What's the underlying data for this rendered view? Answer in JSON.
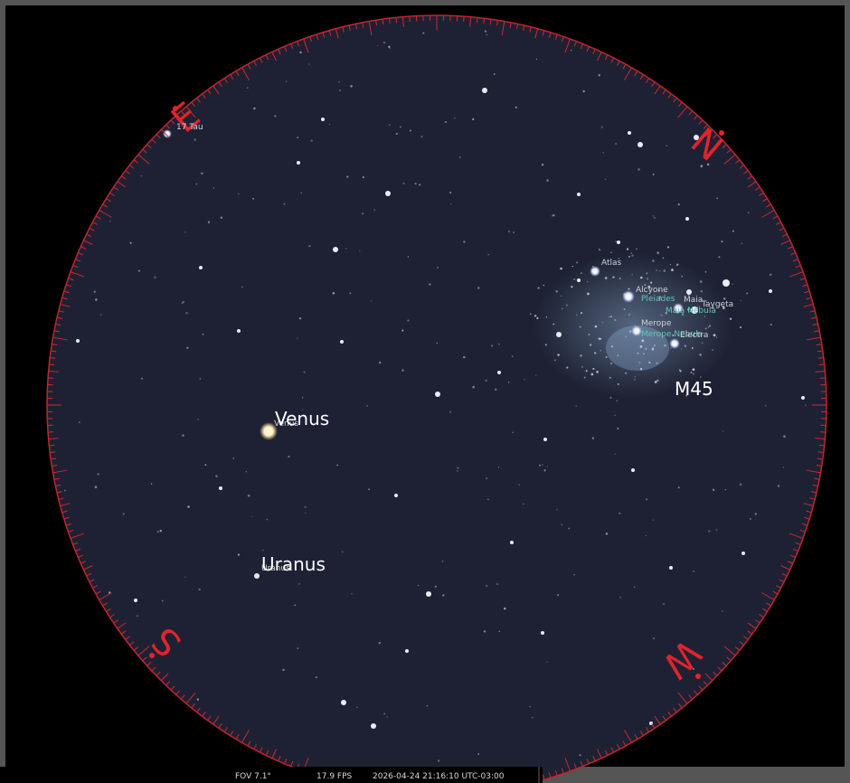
{
  "sky": {
    "compass": {
      "east": "E",
      "north": "N",
      "west": "W",
      "south": "S"
    },
    "annotations": {
      "venus": "Venus",
      "uranus": "Uranus",
      "m45": "M45"
    },
    "object_labels": {
      "tau17": "17 Tau",
      "venus": "Venus",
      "uranus": "Uranus",
      "atlas": "Atlas",
      "alcyone": "Alcyone",
      "pleiades": "Pleiades",
      "maia": "Maia",
      "maia_nebula": "Maia Nebula",
      "taygeta": "Taygeta",
      "merope": "Merope",
      "merope_nebula": "Merope Nebula",
      "electra": "Electra"
    }
  },
  "status_bar": {
    "fov": "FOV 7.1°",
    "fps": "17.9 FPS",
    "datetime": "2026-04-24 21:16:10 UTC-03:00"
  }
}
